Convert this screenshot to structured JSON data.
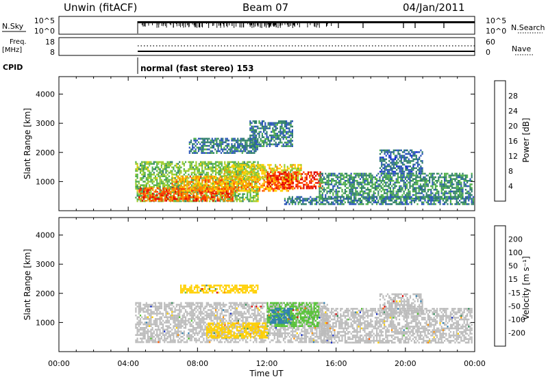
{
  "header": {
    "station": "Unwin (fitACF)",
    "beam": "Beam 07",
    "date": "04/Jan/2011"
  },
  "panels": {
    "nsky": {
      "label": "N.Sky",
      "ticks_left": [
        "10^5",
        "10^0"
      ],
      "ticks_right": [
        "10^5",
        "10^0"
      ],
      "right_label": "N.Search"
    },
    "freq": {
      "label_line1": "Freq.",
      "label_line2": "[MHz]",
      "ticks_left": [
        "18",
        "8"
      ],
      "ticks_right": [
        "60",
        "0"
      ],
      "right_label": "Nave"
    },
    "cpid": {
      "label": "CPID",
      "text": "normal (fast stereo) 153"
    }
  },
  "colors": {
    "power_scale": [
      "#1020e0",
      "#2a55b8",
      "#2f7f6a",
      "#4fb04a",
      "#9ccc2c",
      "#ffd000",
      "#ff8c00",
      "#ff3a00",
      "#e00000"
    ],
    "velocity_scale": [
      "#1a30c8",
      "#2f7fb0",
      "#2e8a55",
      "#55c235",
      "#bcbcbc",
      "#ffd000",
      "#ff9000",
      "#ff5500",
      "#e00000"
    ],
    "gray_fill": "#c0c0c0"
  },
  "chart_data": [
    {
      "type": "heatmap",
      "name": "power-panel",
      "ylabel": "Slant Range [km]",
      "yticks": [
        "1000",
        "2000",
        "3000",
        "4000"
      ],
      "ylim": [
        0,
        4600
      ],
      "xlim": [
        "00:00",
        "24:00"
      ],
      "colorbar_label": "Power [dB]",
      "colorbar_ticks": [
        "4",
        "8",
        "12",
        "16",
        "20",
        "24",
        "28"
      ],
      "data_start": "04:24",
      "blobs": [
        {
          "t0": 4.4,
          "t1": 11.5,
          "r0": 300,
          "r1": 1700,
          "value": 14
        },
        {
          "t0": 4.6,
          "t1": 10.0,
          "r0": 350,
          "r1": 800,
          "value": 26
        },
        {
          "t0": 6.5,
          "t1": 13.5,
          "r0": 700,
          "r1": 1200,
          "value": 22
        },
        {
          "t0": 9.5,
          "t1": 14.0,
          "r0": 1100,
          "r1": 1600,
          "value": 18
        },
        {
          "t0": 12.0,
          "t1": 15.2,
          "r0": 800,
          "r1": 1350,
          "value": 28
        },
        {
          "t0": 7.5,
          "t1": 11.5,
          "r0": 2000,
          "r1": 2500,
          "value": 8
        },
        {
          "t0": 11.0,
          "t1": 13.5,
          "r0": 2200,
          "r1": 3100,
          "value": 8
        },
        {
          "t0": 15.0,
          "t1": 23.8,
          "r0": 400,
          "r1": 1300,
          "value": 10
        },
        {
          "t0": 18.5,
          "t1": 21.0,
          "r0": 1300,
          "r1": 2100,
          "value": 7
        },
        {
          "t0": 13.0,
          "t1": 23.9,
          "r0": 250,
          "r1": 500,
          "value": 8
        }
      ]
    },
    {
      "type": "heatmap",
      "name": "velocity-panel",
      "ylabel": "Slant Range [km]",
      "yticks": [
        "1000",
        "2000",
        "3000",
        "4000"
      ],
      "ylim": [
        0,
        4600
      ],
      "xlim": [
        "00:00",
        "24:00"
      ],
      "xticks": [
        "00:00",
        "04:00",
        "08:00",
        "12:00",
        "16:00",
        "20:00",
        "00:00"
      ],
      "xlabel": "Time UT",
      "colorbar_label": "Velocity [m s⁻¹]",
      "colorbar_ticks": [
        "200",
        "100",
        "50",
        "15",
        "-15",
        "-50",
        "-100",
        "-200"
      ],
      "data_start": "04:24",
      "blobs": [
        {
          "t0": 4.4,
          "t1": 15.5,
          "r0": 300,
          "r1": 1700,
          "value": 0
        },
        {
          "t0": 12.0,
          "t1": 15.0,
          "r0": 900,
          "r1": 1700,
          "value": 60
        },
        {
          "t0": 12.2,
          "t1": 13.5,
          "r0": 1000,
          "r1": 1500,
          "value": 200
        },
        {
          "t0": 8.5,
          "t1": 12.0,
          "r0": 500,
          "r1": 1000,
          "value": -50
        },
        {
          "t0": 7.0,
          "t1": 11.5,
          "r0": 2000,
          "r1": 2300,
          "value": -80
        },
        {
          "t0": 15.0,
          "t1": 23.8,
          "r0": 300,
          "r1": 1500,
          "value": 0
        },
        {
          "t0": 18.5,
          "t1": 21.0,
          "r0": 1300,
          "r1": 2000,
          "value": 0
        }
      ]
    }
  ]
}
